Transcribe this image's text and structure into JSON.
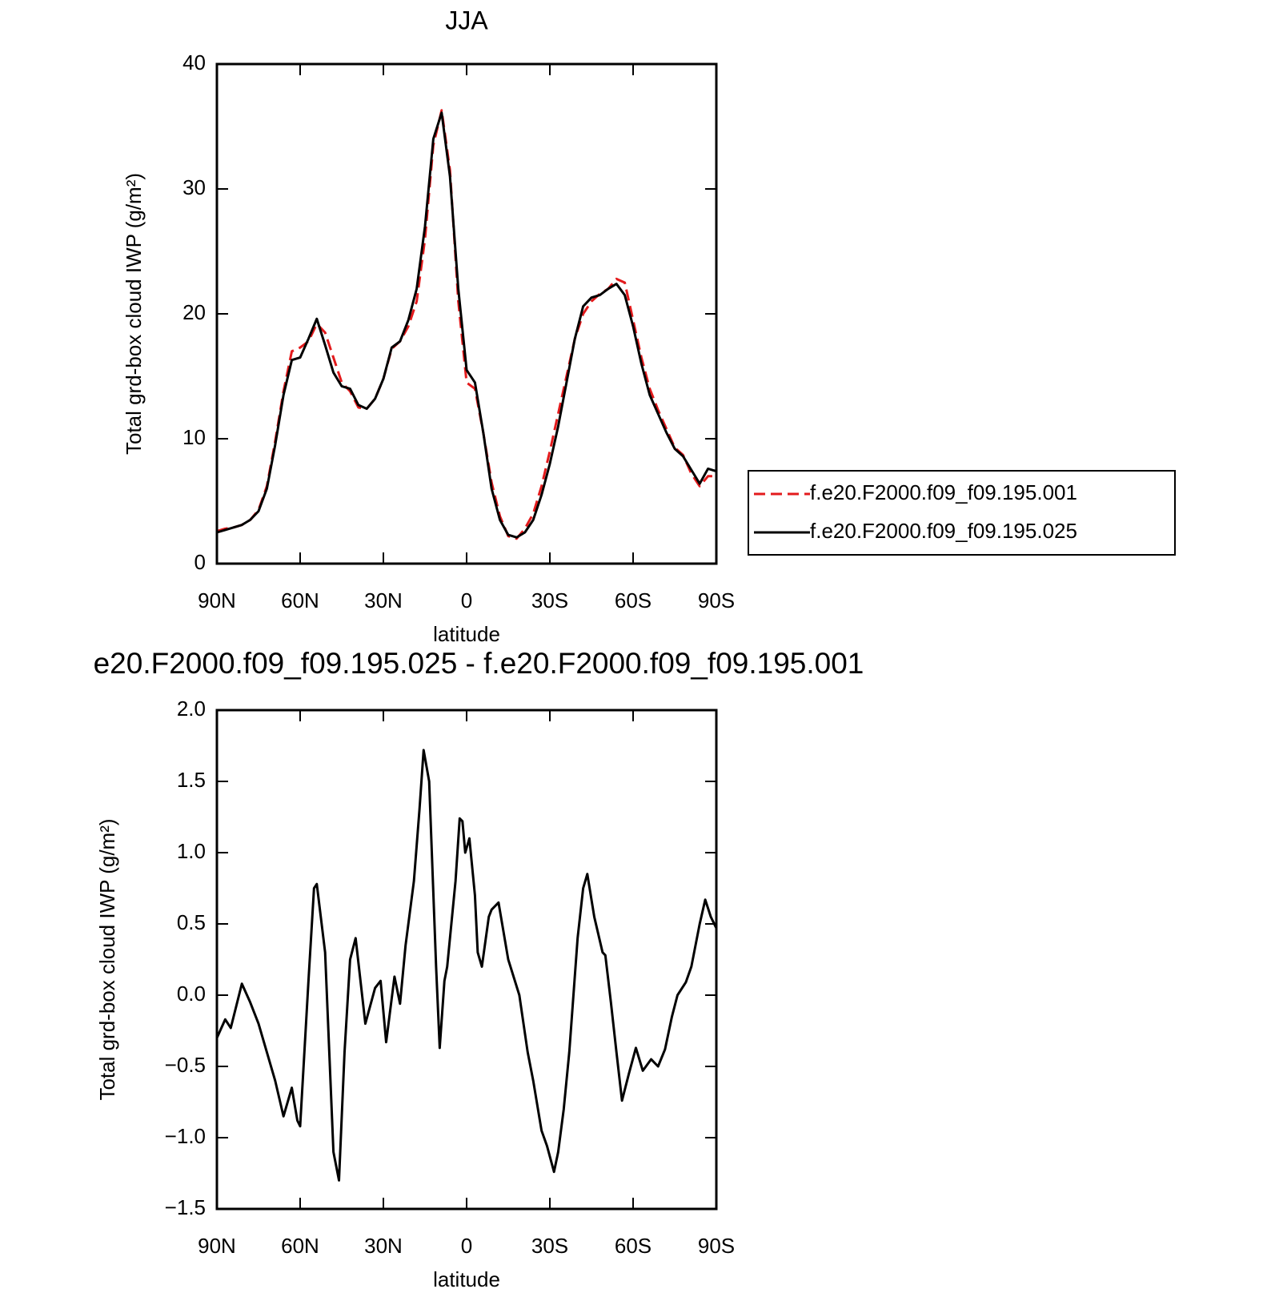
{
  "chart_data": [
    {
      "type": "line",
      "title": "JJA",
      "x_label": "latitude",
      "y_label": "Total grd-box cloud IWP (g/m²)",
      "x": [
        90,
        87,
        84,
        81,
        78,
        75,
        72,
        69,
        66,
        63,
        60,
        57,
        54,
        51,
        48,
        45,
        42,
        39,
        36,
        33,
        30,
        27,
        24,
        21,
        18,
        15,
        12,
        9,
        6,
        3,
        0,
        -3,
        -6,
        -9,
        -12,
        -15,
        -18,
        -21,
        -24,
        -27,
        -30,
        -33,
        -36,
        -39,
        -42,
        -45,
        -48,
        -51,
        -54,
        -57,
        -60,
        -63,
        -66,
        -69,
        -72,
        -75,
        -78,
        -81,
        -84,
        -87,
        -90
      ],
      "series": [
        {
          "name": "f.e20.F2000.f09_f09.195.001",
          "color": "#e31a1c",
          "line_style": "dashed",
          "values": [
            2.6,
            2.8,
            2.9,
            3.1,
            3.5,
            4.3,
            6.2,
            9.8,
            13.8,
            17.0,
            17.3,
            17.8,
            19.2,
            18.5,
            16.5,
            14.5,
            13.8,
            12.5,
            12.4,
            13.2,
            14.8,
            17.2,
            17.8,
            19.0,
            21.0,
            26.0,
            33.5,
            36.3,
            31.5,
            21.0,
            14.5,
            14.0,
            10.5,
            6.5,
            3.8,
            2.2,
            2.0,
            2.8,
            4.0,
            6.2,
            9.0,
            12.0,
            15.0,
            18.0,
            20.0,
            21.0,
            21.6,
            22.0,
            22.8,
            22.5,
            19.5,
            16.5,
            14.0,
            12.3,
            10.8,
            9.3,
            8.7,
            7.2,
            6.2,
            7.0,
            7.0
          ]
        },
        {
          "name": "f.e20.F2000.f09_f09.195.025",
          "color": "#000000",
          "line_style": "solid",
          "values": [
            2.5,
            2.7,
            2.9,
            3.1,
            3.5,
            4.2,
            6.0,
            9.5,
            13.5,
            16.3,
            16.5,
            18.0,
            19.6,
            17.5,
            15.3,
            14.2,
            14.0,
            12.7,
            12.4,
            13.2,
            14.8,
            17.3,
            17.8,
            19.5,
            22.0,
            27.0,
            34.0,
            36.1,
            31.0,
            22.0,
            15.5,
            14.5,
            10.5,
            6.0,
            3.5,
            2.3,
            2.1,
            2.5,
            3.5,
            5.5,
            8.0,
            11.0,
            14.5,
            18.0,
            20.6,
            21.3,
            21.5,
            22.0,
            22.4,
            21.5,
            19.0,
            16.0,
            13.5,
            12.0,
            10.5,
            9.2,
            8.6,
            7.5,
            6.4,
            7.6,
            7.4
          ]
        }
      ],
      "xlim": [
        90,
        -90
      ],
      "xticks": [
        {
          "value": 90,
          "label": "90N"
        },
        {
          "value": 60,
          "label": "60N"
        },
        {
          "value": 30,
          "label": "30N"
        },
        0,
        {
          "value": -30,
          "label": "30S"
        },
        {
          "value": -60,
          "label": "60S"
        },
        {
          "value": -90,
          "label": "90S"
        }
      ],
      "ylim": [
        0,
        40
      ],
      "yticks": [
        0,
        10,
        20,
        30,
        40
      ],
      "legend": "right"
    },
    {
      "type": "line",
      "title": "e20.F2000.f09_f09.195.025 - f.e20.F2000.f09_f09.195.001",
      "x_label": "latitude",
      "y_label": "Total grd-box cloud IWP (g/m²)",
      "color": "#000000",
      "x": [
        90,
        87,
        85,
        81,
        78,
        75,
        72,
        69,
        66,
        63,
        61,
        60,
        57,
        55,
        54,
        51,
        48,
        46,
        44,
        42,
        40,
        36.5,
        33,
        31,
        29,
        26,
        24,
        22,
        19,
        17,
        15.5,
        13.5,
        11,
        9.7,
        8,
        7,
        4,
        2.5,
        1.5,
        0.5,
        -1,
        -3,
        -4,
        -5.5,
        -8,
        -9,
        -11.5,
        -15,
        -19,
        -22,
        -24,
        -27,
        -29,
        -31.5,
        -33,
        -35,
        -37,
        -40,
        -42,
        -43.5,
        -46,
        -49,
        -50,
        -52,
        -54,
        -56,
        -58.5,
        -61,
        -63.5,
        -66.5,
        -69,
        -71.5,
        -74,
        -76,
        -79,
        -81,
        -84,
        -86,
        -88,
        -90
      ],
      "values": [
        -0.3,
        -0.17,
        -0.23,
        0.08,
        -0.05,
        -0.2,
        -0.4,
        -0.6,
        -0.85,
        -0.65,
        -0.88,
        -0.92,
        0.1,
        0.75,
        0.78,
        0.3,
        -1.1,
        -1.3,
        -0.4,
        0.25,
        0.4,
        -0.2,
        0.05,
        0.1,
        -0.33,
        0.13,
        -0.06,
        0.35,
        0.8,
        1.3,
        1.72,
        1.5,
        0.2,
        -0.37,
        0.1,
        0.2,
        0.8,
        1.24,
        1.22,
        1.0,
        1.1,
        0.7,
        0.3,
        0.2,
        0.55,
        0.6,
        0.65,
        0.25,
        0.0,
        -0.4,
        -0.6,
        -0.95,
        -1.06,
        -1.24,
        -1.1,
        -0.8,
        -0.4,
        0.4,
        0.75,
        0.85,
        0.55,
        0.3,
        0.28,
        -0.05,
        -0.4,
        -0.74,
        -0.55,
        -0.37,
        -0.53,
        -0.45,
        -0.5,
        -0.38,
        -0.15,
        0.0,
        0.09,
        0.2,
        0.5,
        0.67,
        0.55,
        0.47
      ],
      "xlim": [
        90,
        -90
      ],
      "xticks": [
        {
          "value": 90,
          "label": "90N"
        },
        {
          "value": 60,
          "label": "60N"
        },
        {
          "value": 30,
          "label": "30N"
        },
        0,
        {
          "value": -30,
          "label": "30S"
        },
        {
          "value": -60,
          "label": "60S"
        },
        {
          "value": -90,
          "label": "90S"
        }
      ],
      "ylim": [
        -1.5,
        2.0
      ],
      "yticks": [
        {
          "value": -1.5,
          "label": "−1.5"
        },
        {
          "value": -1.0,
          "label": "−1.0"
        },
        {
          "value": -0.5,
          "label": "−0.5"
        },
        {
          "value": 0,
          "label": "0.0"
        },
        0.5,
        {
          "value": 1.0,
          "label": "1.0"
        },
        1.5,
        {
          "value": 2.0,
          "label": "2.0"
        }
      ]
    }
  ]
}
